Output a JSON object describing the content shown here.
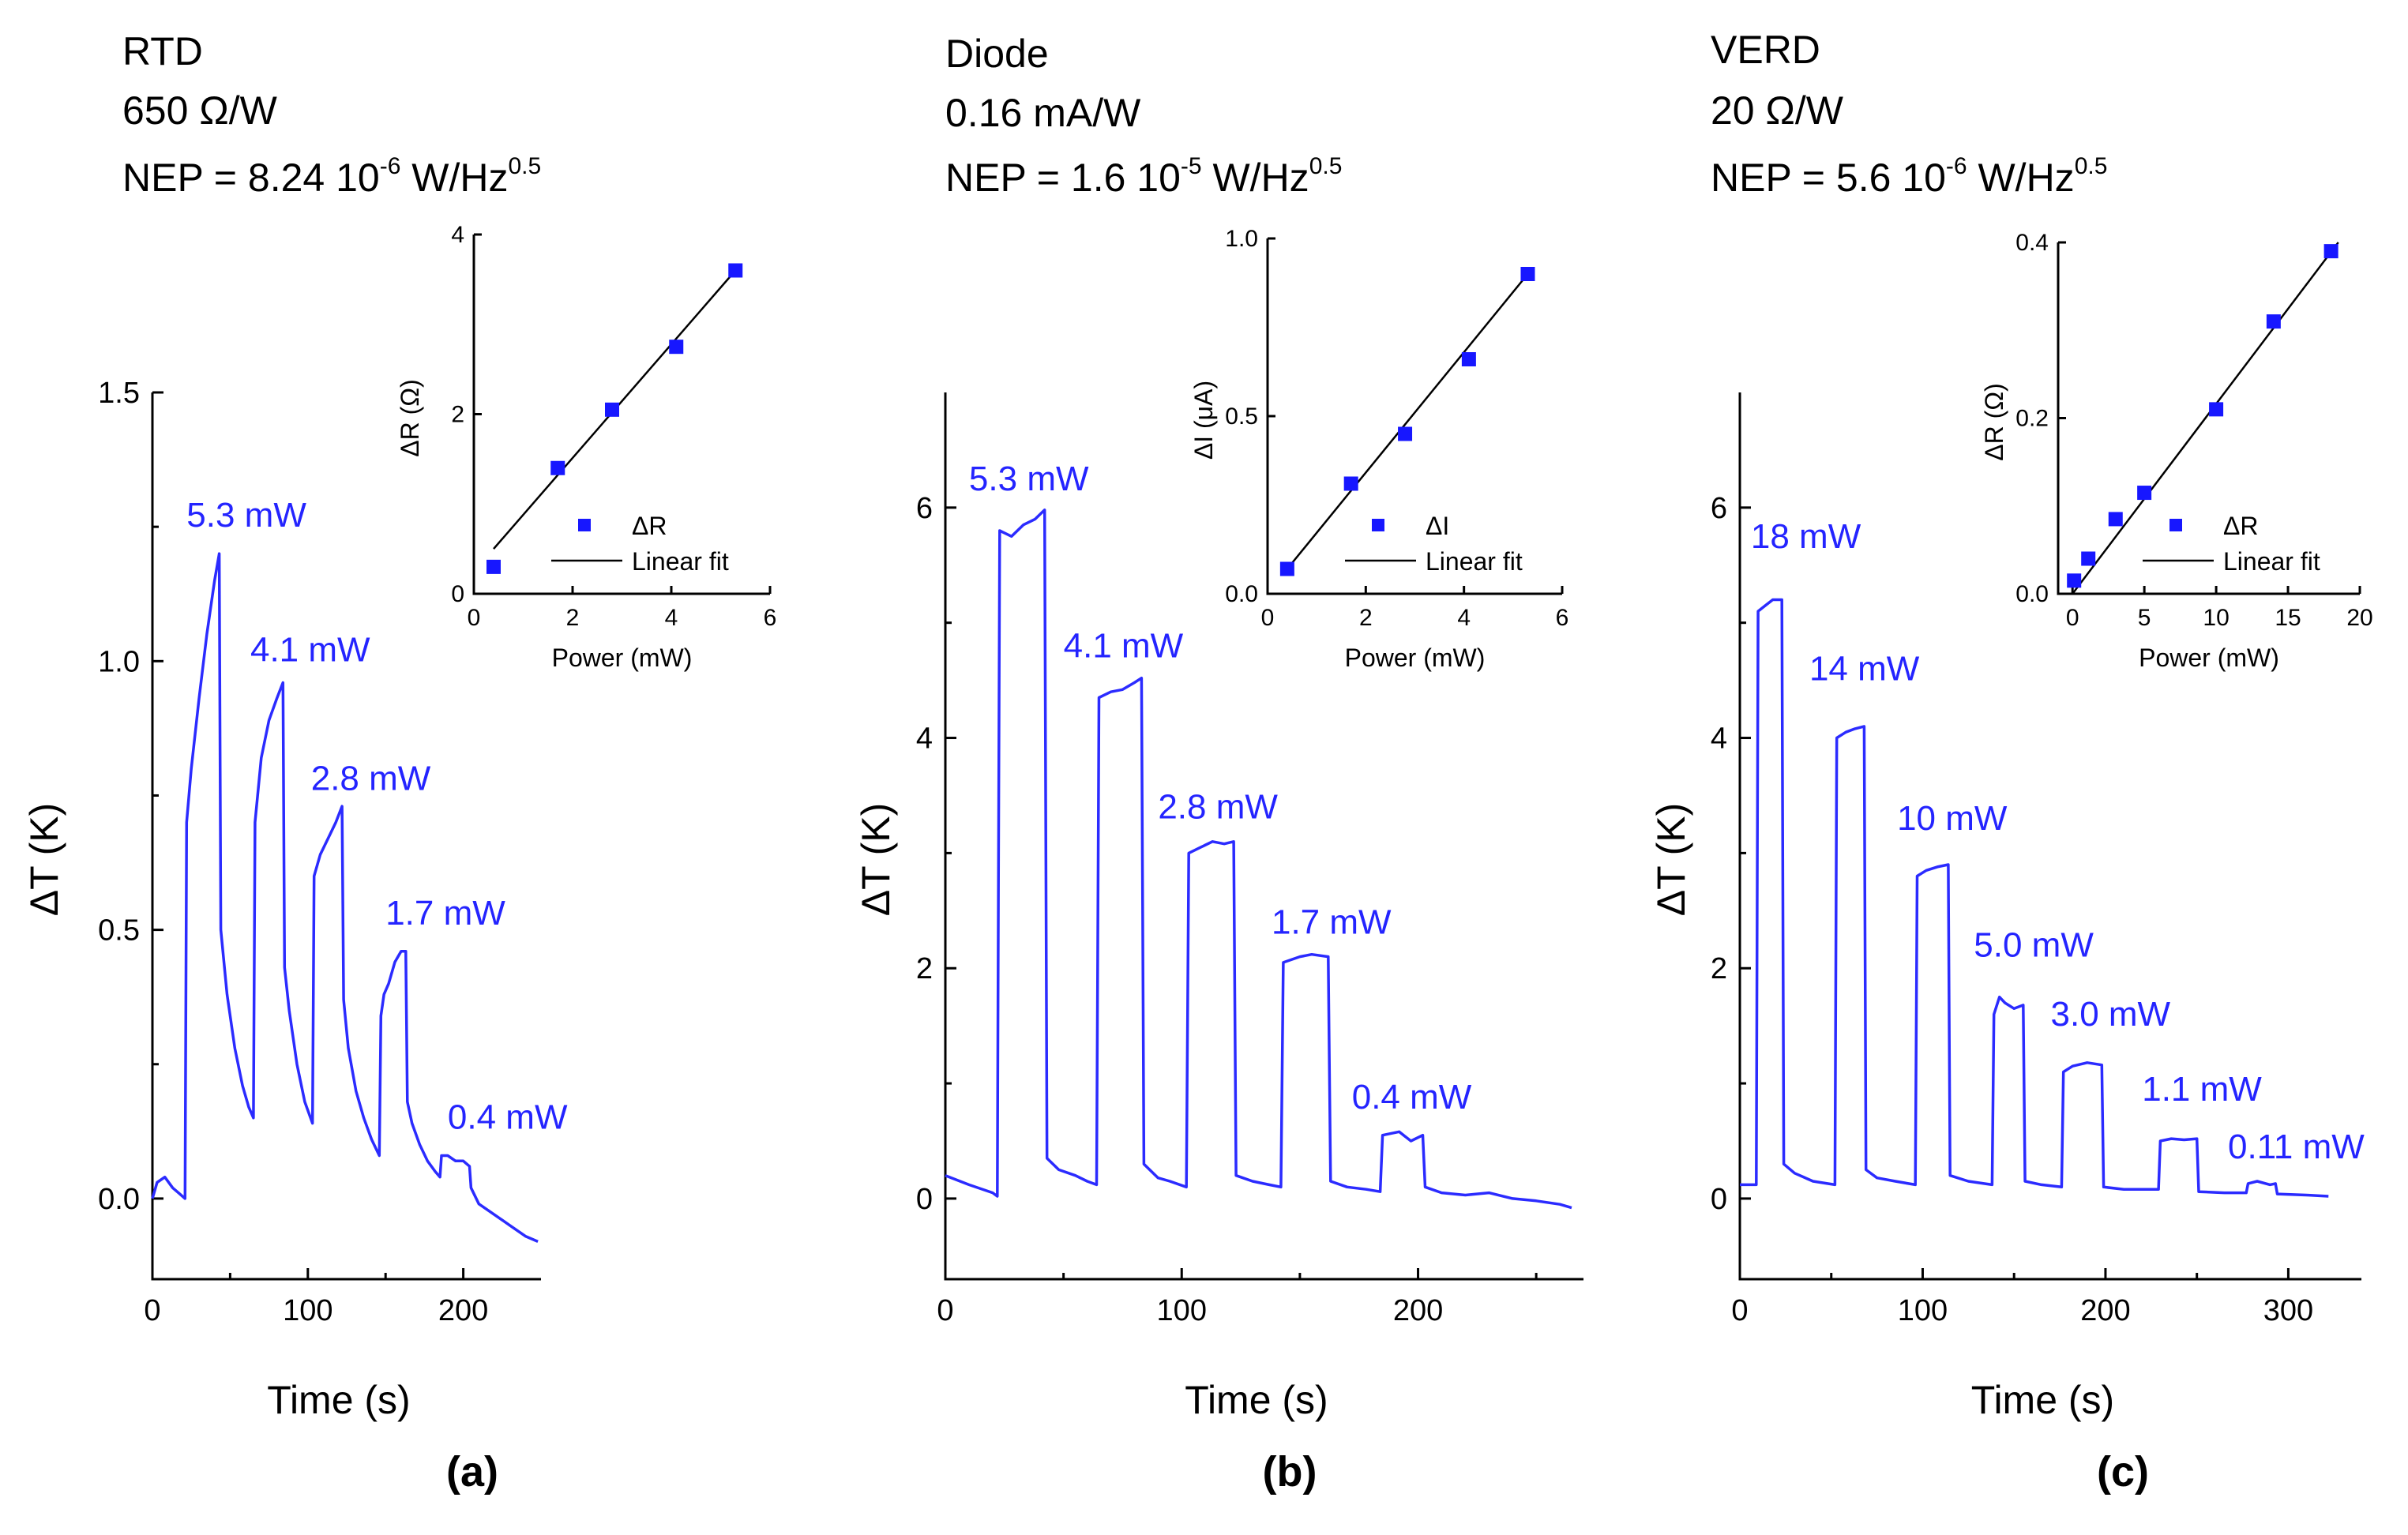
{
  "figure": {
    "x_axis_title": "Time (s)",
    "y_axis_title": "ΔT (K)",
    "inset_x_axis_title": "Power (mW)",
    "legend_fit_label": "Linear fit",
    "series_color": "#2b2bff",
    "marker_color": "#1717ff"
  },
  "chart_data": [
    {
      "panel_label": "(a)",
      "type": "line",
      "header": {
        "line1": "RTD",
        "line2": "650 Ω/W",
        "nep_prefix": "NEP = 8.24 10",
        "nep_exp": "-6",
        "nep_unit": " W/Hz",
        "nep_unit_exp": "0.5"
      },
      "xlabel": "Time (s)",
      "ylabel": "ΔT (K)",
      "xlim": [
        0,
        250
      ],
      "ylim": [
        -0.15,
        1.5
      ],
      "xticks": [
        0,
        100,
        200
      ],
      "yticks": [
        0.0,
        0.5,
        1.0,
        1.5
      ],
      "tick_decimals": 1,
      "series": [
        {
          "name": "ΔT",
          "points": [
            [
              0,
              0.0
            ],
            [
              3,
              0.03
            ],
            [
              8,
              0.04
            ],
            [
              13,
              0.02
            ],
            [
              17,
              0.01
            ],
            [
              21,
              0.0
            ],
            [
              22,
              0.7
            ],
            [
              25,
              0.8
            ],
            [
              30,
              0.93
            ],
            [
              35,
              1.05
            ],
            [
              40,
              1.15
            ],
            [
              43,
              1.2
            ],
            [
              44,
              0.5
            ],
            [
              48,
              0.38
            ],
            [
              53,
              0.28
            ],
            [
              58,
              0.21
            ],
            [
              62,
              0.17
            ],
            [
              65,
              0.15
            ],
            [
              66,
              0.7
            ],
            [
              70,
              0.82
            ],
            [
              75,
              0.89
            ],
            [
              80,
              0.93
            ],
            [
              84,
              0.96
            ],
            [
              85,
              0.43
            ],
            [
              88,
              0.35
            ],
            [
              93,
              0.25
            ],
            [
              98,
              0.18
            ],
            [
              103,
              0.14
            ],
            [
              104,
              0.6
            ],
            [
              108,
              0.64
            ],
            [
              113,
              0.67
            ],
            [
              118,
              0.7
            ],
            [
              122,
              0.73
            ],
            [
              123,
              0.37
            ],
            [
              126,
              0.28
            ],
            [
              131,
              0.2
            ],
            [
              136,
              0.15
            ],
            [
              141,
              0.11
            ],
            [
              146,
              0.08
            ],
            [
              147,
              0.34
            ],
            [
              149,
              0.38
            ],
            [
              152,
              0.4
            ],
            [
              156,
              0.44
            ],
            [
              160,
              0.46
            ],
            [
              163,
              0.46
            ],
            [
              164,
              0.18
            ],
            [
              167,
              0.14
            ],
            [
              172,
              0.1
            ],
            [
              177,
              0.07
            ],
            [
              182,
              0.05
            ],
            [
              185,
              0.04
            ],
            [
              186,
              0.08
            ],
            [
              190,
              0.08
            ],
            [
              195,
              0.07
            ],
            [
              200,
              0.07
            ],
            [
              204,
              0.06
            ],
            [
              205,
              0.02
            ],
            [
              210,
              -0.01
            ],
            [
              220,
              -0.03
            ],
            [
              230,
              -0.05
            ],
            [
              240,
              -0.07
            ],
            [
              248,
              -0.08
            ]
          ]
        }
      ],
      "annotations": [
        {
          "text": "5.3 mW",
          "x": 22,
          "y": 1.25
        },
        {
          "text": "4.1 mW",
          "x": 63,
          "y": 1.0
        },
        {
          "text": "2.8 mW",
          "x": 102,
          "y": 0.76
        },
        {
          "text": "1.7 mW",
          "x": 150,
          "y": 0.51
        },
        {
          "text": "0.4 mW",
          "x": 190,
          "y": 0.13
        }
      ],
      "inset": {
        "type": "scatter",
        "xlabel": "Power (mW)",
        "ylabel": "ΔR (Ω)",
        "xlim": [
          0,
          6
        ],
        "ylim": [
          0,
          4
        ],
        "xticks": [
          0,
          2,
          4,
          6
        ],
        "yticks": [
          0,
          2,
          4
        ],
        "tick_decimals": 0,
        "legend_marker_label": "ΔR",
        "points": [
          [
            0.4,
            0.3
          ],
          [
            1.7,
            1.4
          ],
          [
            2.8,
            2.05
          ],
          [
            4.1,
            2.75
          ],
          [
            5.3,
            3.6
          ]
        ],
        "fit": [
          [
            0.4,
            0.5
          ],
          [
            5.3,
            3.6
          ]
        ]
      }
    },
    {
      "panel_label": "(b)",
      "type": "line",
      "header": {
        "line1": "Diode",
        "line2": "0.16 mA/W",
        "nep_prefix": "NEP = 1.6 10",
        "nep_exp": "-5",
        "nep_unit": " W/Hz",
        "nep_unit_exp": "0.5"
      },
      "xlabel": "Time (s)",
      "ylabel": "ΔT (K)",
      "xlim": [
        0,
        270
      ],
      "ylim": [
        -0.7,
        7
      ],
      "xticks": [
        0,
        100,
        200
      ],
      "yticks": [
        0,
        2,
        4,
        6
      ],
      "tick_decimals": 0,
      "series": [
        {
          "name": "ΔT",
          "points": [
            [
              0,
              0.2
            ],
            [
              10,
              0.12
            ],
            [
              20,
              0.05
            ],
            [
              22,
              0.02
            ],
            [
              23,
              5.8
            ],
            [
              28,
              5.75
            ],
            [
              33,
              5.85
            ],
            [
              38,
              5.9
            ],
            [
              42,
              5.98
            ],
            [
              43,
              0.35
            ],
            [
              48,
              0.25
            ],
            [
              55,
              0.2
            ],
            [
              60,
              0.15
            ],
            [
              64,
              0.12
            ],
            [
              65,
              4.35
            ],
            [
              70,
              4.4
            ],
            [
              75,
              4.42
            ],
            [
              80,
              4.48
            ],
            [
              83,
              4.52
            ],
            [
              84,
              0.3
            ],
            [
              90,
              0.18
            ],
            [
              95,
              0.15
            ],
            [
              102,
              0.1
            ],
            [
              103,
              3.0
            ],
            [
              108,
              3.05
            ],
            [
              113,
              3.1
            ],
            [
              118,
              3.08
            ],
            [
              122,
              3.1
            ],
            [
              123,
              0.2
            ],
            [
              130,
              0.15
            ],
            [
              137,
              0.12
            ],
            [
              142,
              0.1
            ],
            [
              143,
              2.05
            ],
            [
              150,
              2.1
            ],
            [
              155,
              2.12
            ],
            [
              162,
              2.1
            ],
            [
              163,
              0.15
            ],
            [
              170,
              0.1
            ],
            [
              178,
              0.08
            ],
            [
              184,
              0.06
            ],
            [
              185,
              0.55
            ],
            [
              192,
              0.58
            ],
            [
              197,
              0.5
            ],
            [
              202,
              0.55
            ],
            [
              203,
              0.1
            ],
            [
              210,
              0.05
            ],
            [
              220,
              0.03
            ],
            [
              230,
              0.05
            ],
            [
              240,
              0.0
            ],
            [
              250,
              -0.02
            ],
            [
              260,
              -0.05
            ],
            [
              265,
              -0.08
            ]
          ]
        }
      ],
      "annotations": [
        {
          "text": "5.3 mW",
          "x": 10,
          "y": 6.15
        },
        {
          "text": "4.1 mW",
          "x": 50,
          "y": 4.7
        },
        {
          "text": "2.8 mW",
          "x": 90,
          "y": 3.3
        },
        {
          "text": "1.7 mW",
          "x": 138,
          "y": 2.3
        },
        {
          "text": "0.4 mW",
          "x": 172,
          "y": 0.78
        }
      ],
      "inset": {
        "type": "scatter",
        "xlabel": "Power (mW)",
        "ylabel": "ΔI (μA)",
        "xlim": [
          0,
          6
        ],
        "ylim": [
          0,
          1.0
        ],
        "xticks": [
          0,
          2,
          4,
          6
        ],
        "yticks": [
          0.0,
          0.5,
          1.0
        ],
        "tick_decimals": 1,
        "legend_marker_label": "ΔI",
        "points": [
          [
            0.4,
            0.07
          ],
          [
            1.7,
            0.31
          ],
          [
            2.8,
            0.45
          ],
          [
            4.1,
            0.66
          ],
          [
            5.3,
            0.9
          ]
        ],
        "fit": [
          [
            0.4,
            0.07
          ],
          [
            5.3,
            0.9
          ]
        ]
      }
    },
    {
      "panel_label": "(c)",
      "type": "line",
      "header": {
        "line1": "VERD",
        "line2": "20 Ω/W",
        "nep_prefix": "NEP = 5.6 10",
        "nep_exp": "-6",
        "nep_unit": " W/Hz",
        "nep_unit_exp": "0.5"
      },
      "xlabel": "Time (s)",
      "ylabel": "ΔT (K)",
      "xlim": [
        0,
        340
      ],
      "ylim": [
        -0.7,
        7
      ],
      "xticks": [
        0,
        100,
        200,
        300
      ],
      "yticks": [
        0,
        2,
        4,
        6
      ],
      "tick_decimals": 0,
      "series": [
        {
          "name": "ΔT",
          "points": [
            [
              0,
              0.12
            ],
            [
              9,
              0.12
            ],
            [
              10,
              5.1
            ],
            [
              14,
              5.15
            ],
            [
              18,
              5.2
            ],
            [
              23,
              5.2
            ],
            [
              24,
              0.3
            ],
            [
              30,
              0.22
            ],
            [
              40,
              0.15
            ],
            [
              52,
              0.12
            ],
            [
              53,
              4.0
            ],
            [
              58,
              4.05
            ],
            [
              63,
              4.08
            ],
            [
              68,
              4.1
            ],
            [
              69,
              0.25
            ],
            [
              75,
              0.18
            ],
            [
              85,
              0.15
            ],
            [
              96,
              0.12
            ],
            [
              97,
              2.8
            ],
            [
              102,
              2.85
            ],
            [
              108,
              2.88
            ],
            [
              114,
              2.9
            ],
            [
              115,
              0.2
            ],
            [
              125,
              0.15
            ],
            [
              138,
              0.12
            ],
            [
              139,
              1.6
            ],
            [
              142,
              1.75
            ],
            [
              145,
              1.7
            ],
            [
              150,
              1.65
            ],
            [
              155,
              1.68
            ],
            [
              156,
              0.15
            ],
            [
              165,
              0.12
            ],
            [
              176,
              0.1
            ],
            [
              177,
              1.1
            ],
            [
              182,
              1.15
            ],
            [
              190,
              1.18
            ],
            [
              198,
              1.16
            ],
            [
              199,
              0.1
            ],
            [
              210,
              0.08
            ],
            [
              222,
              0.08
            ],
            [
              229,
              0.08
            ],
            [
              230,
              0.5
            ],
            [
              236,
              0.52
            ],
            [
              243,
              0.51
            ],
            [
              250,
              0.52
            ],
            [
              251,
              0.06
            ],
            [
              265,
              0.05
            ],
            [
              277,
              0.05
            ],
            [
              278,
              0.13
            ],
            [
              283,
              0.15
            ],
            [
              290,
              0.12
            ],
            [
              293,
              0.13
            ],
            [
              294,
              0.04
            ],
            [
              310,
              0.03
            ],
            [
              322,
              0.02
            ]
          ]
        }
      ],
      "annotations": [
        {
          "text": "18 mW",
          "x": 6,
          "y": 5.65
        },
        {
          "text": "14 mW",
          "x": 38,
          "y": 4.5
        },
        {
          "text": "10 mW",
          "x": 86,
          "y": 3.2
        },
        {
          "text": "5.0 mW",
          "x": 128,
          "y": 2.1
        },
        {
          "text": "3.0 mW",
          "x": 170,
          "y": 1.5
        },
        {
          "text": "1.1 mW",
          "x": 220,
          "y": 0.85
        },
        {
          "text": "0.11 mW",
          "x": 267,
          "y": 0.35
        }
      ],
      "inset": {
        "type": "scatter",
        "xlabel": "Power (mW)",
        "ylabel": "ΔR (Ω)",
        "xlim": [
          -1,
          20
        ],
        "ylim": [
          0,
          0.4
        ],
        "xticks": [
          0,
          5,
          10,
          15,
          20
        ],
        "yticks": [
          0.0,
          0.2,
          0.4
        ],
        "tick_decimals": 1,
        "legend_marker_label": "ΔR",
        "points": [
          [
            0.11,
            0.015
          ],
          [
            1.1,
            0.04
          ],
          [
            3.0,
            0.085
          ],
          [
            5.0,
            0.115
          ],
          [
            10,
            0.21
          ],
          [
            14,
            0.31
          ],
          [
            18,
            0.39
          ]
        ],
        "fit": [
          [
            0,
            0.0
          ],
          [
            18.5,
            0.4
          ]
        ]
      }
    }
  ]
}
